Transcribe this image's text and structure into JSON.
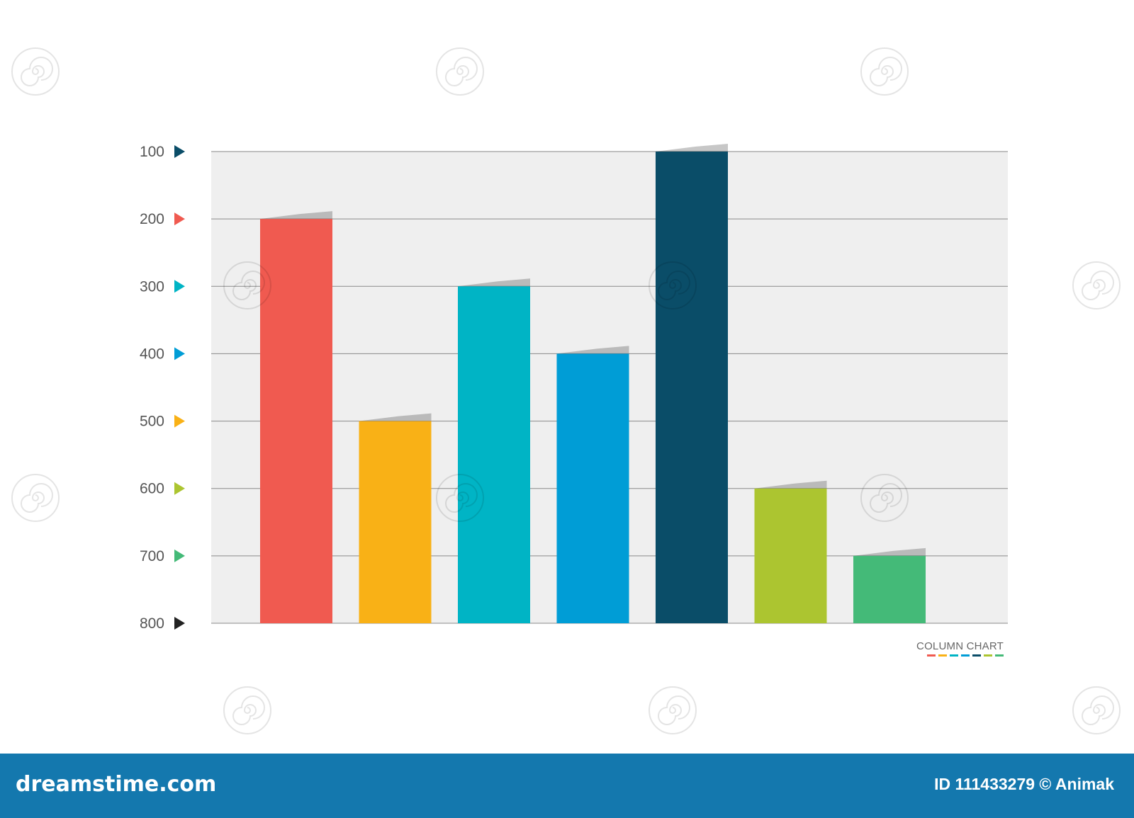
{
  "colors": {
    "plot_background": "#efefef",
    "gridline": "#8a8a8a",
    "footer_background": "#1478ae",
    "footer_text": "#ffffff"
  },
  "chart_data": {
    "type": "bar",
    "title": "COLUMN CHART",
    "categories": [
      "",
      "",
      "",
      "",
      "",
      "",
      ""
    ],
    "values": [
      200,
      500,
      300,
      400,
      100,
      600,
      700
    ],
    "bar_colors": [
      "#f05a50",
      "#f9b116",
      "#00b4c5",
      "#009dd6",
      "#0a4d68",
      "#acc530",
      "#44ba78"
    ],
    "y_axis": {
      "ticks": [
        100,
        200,
        300,
        400,
        500,
        600,
        700,
        800
      ],
      "tick_marker_colors": [
        "#0a4d68",
        "#f05a50",
        "#00b4c5",
        "#009dd6",
        "#f9b116",
        "#acc530",
        "#44ba78",
        "#222222"
      ],
      "range": [
        100,
        800
      ],
      "inverted": true
    },
    "baseline": 800,
    "grid": true,
    "legend": "none",
    "caption_swatches": [
      "#f05a50",
      "#f9b116",
      "#00b4c5",
      "#009dd6",
      "#0a4d68",
      "#acc530",
      "#44ba78"
    ]
  },
  "footer": {
    "brand": "dreamstime.com",
    "credit": "ID 111433279 © Animak"
  }
}
